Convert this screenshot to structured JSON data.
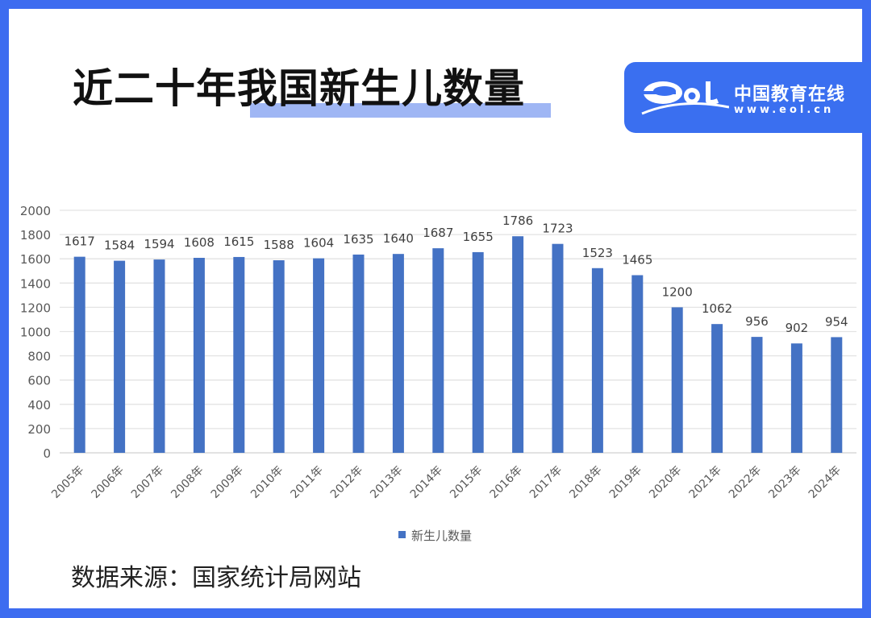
{
  "title": "近二十年我国新生儿数量",
  "logo": {
    "cn": "中国教育在线",
    "url": "www.eol.cn",
    "mark": "eol"
  },
  "source": "数据来源：国家统计局网站",
  "colors": {
    "frame": "#3d6cf0",
    "bar": "#4472c4",
    "highlight": "#9fb6f4"
  },
  "chart_data": {
    "type": "bar",
    "categories": [
      "2005年",
      "2006年",
      "2007年",
      "2008年",
      "2009年",
      "2010年",
      "2011年",
      "2012年",
      "2013年",
      "2014年",
      "2015年",
      "2016年",
      "2017年",
      "2018年",
      "2019年",
      "2020年",
      "2021年",
      "2022年",
      "2023年",
      "2024年"
    ],
    "series": [
      {
        "name": "新生儿数量",
        "values": [
          1617,
          1584,
          1594,
          1608,
          1615,
          1588,
          1604,
          1635,
          1640,
          1687,
          1655,
          1786,
          1723,
          1523,
          1465,
          1200,
          1062,
          956,
          902,
          954
        ]
      }
    ],
    "ylim": [
      0,
      2000
    ],
    "yticks": [
      0,
      200,
      400,
      600,
      800,
      1000,
      1200,
      1400,
      1600,
      1800,
      2000
    ],
    "grid": true,
    "legend": "bottom"
  }
}
